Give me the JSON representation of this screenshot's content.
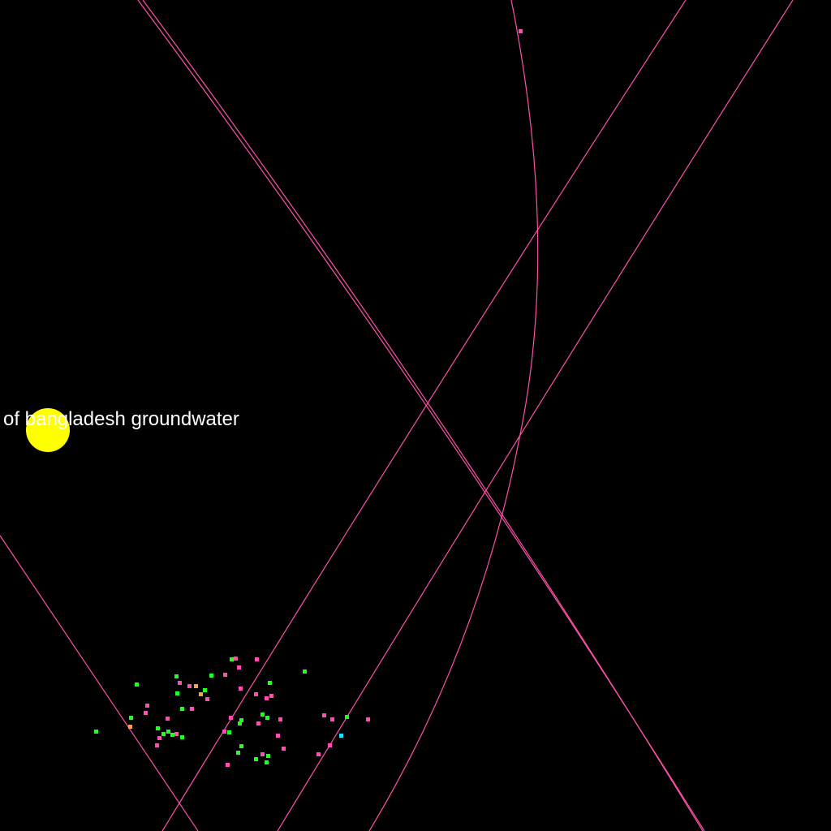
{
  "scene": {
    "label": "of bangladesh groundwater",
    "colors": {
      "background": "#000000",
      "curve": "#ff4fa8",
      "sun": "#ffff00",
      "text": "#ffffff",
      "point_pink": "#ff4fb0",
      "point_green": "#22ff22",
      "point_orange": "#ffa040",
      "point_cyan": "#20e0ff"
    }
  }
}
